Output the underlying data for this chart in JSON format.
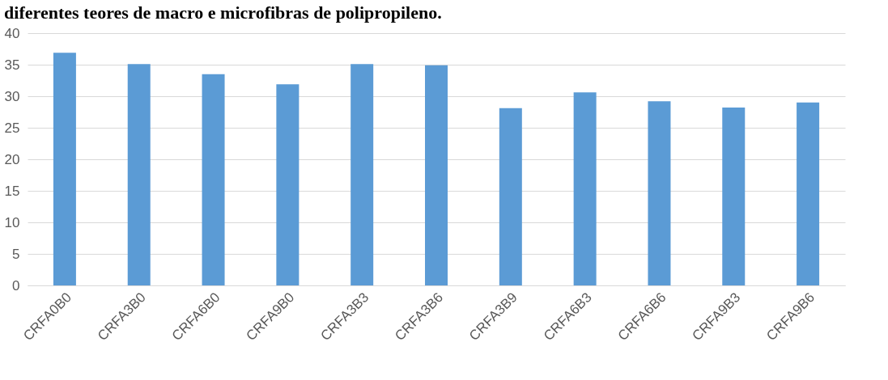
{
  "chart_data": {
    "type": "bar",
    "title": "diferentes teores de macro e microfibras de polipropileno.",
    "categories": [
      "CRFA0B0",
      "CRFA3B0",
      "CRFA6B0",
      "CRFA9B0",
      "CRFA3B3",
      "CRFA3B6",
      "CRFA3B9",
      "CRFA6B3",
      "CRFA6B6",
      "CRFA9B3",
      "CRFA9B6"
    ],
    "values": [
      36.9,
      35.1,
      33.5,
      31.9,
      35.1,
      34.9,
      28.1,
      30.6,
      29.2,
      28.2,
      29.0
    ],
    "color": "#5b9bd5",
    "ylim": [
      0,
      40
    ],
    "yticks": [
      0,
      5,
      10,
      15,
      20,
      25,
      30,
      35,
      40
    ],
    "grid": "y"
  }
}
